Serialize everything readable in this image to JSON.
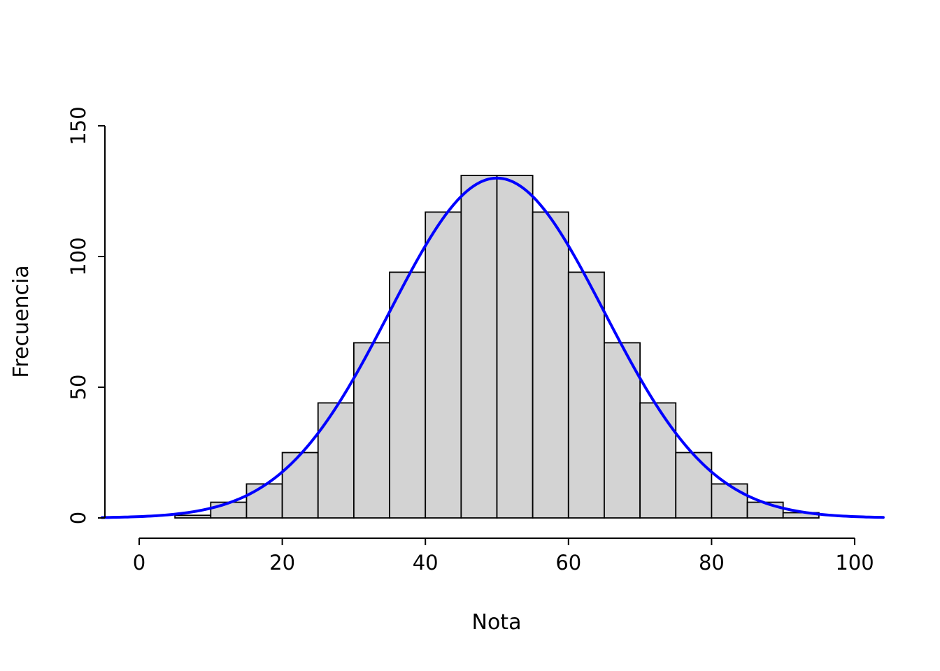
{
  "chart_data": {
    "type": "bar",
    "subtype": "histogram-with-density-curve",
    "title": "",
    "xlabel": "Nota",
    "ylabel": "Frecuencia",
    "xlim": [
      -5.2,
      104.2
    ],
    "ylim": [
      0,
      150
    ],
    "x_ticks": [
      0,
      20,
      40,
      60,
      80,
      100
    ],
    "y_ticks": [
      0,
      50,
      100,
      150
    ],
    "grid": false,
    "legend": "none",
    "bin_edges": [
      5,
      10,
      15,
      20,
      25,
      30,
      35,
      40,
      45,
      50,
      55,
      60,
      65,
      70,
      75,
      80,
      85,
      90,
      95
    ],
    "counts": [
      1,
      6,
      13,
      25,
      44,
      67,
      94,
      117,
      131,
      131,
      117,
      94,
      67,
      44,
      25,
      13,
      6,
      2
    ],
    "curve": {
      "kind": "normal",
      "mean": 50,
      "sd": 15,
      "peak": 130,
      "x_start": -5.2,
      "x_end": 104.2,
      "color": "#0000ff",
      "width": 4
    },
    "style": {
      "bar_fill": "#d3d3d3",
      "bar_stroke": "#000000",
      "bar_stroke_width": 1.8,
      "axis_color": "#000000",
      "axis_width": 2
    }
  }
}
